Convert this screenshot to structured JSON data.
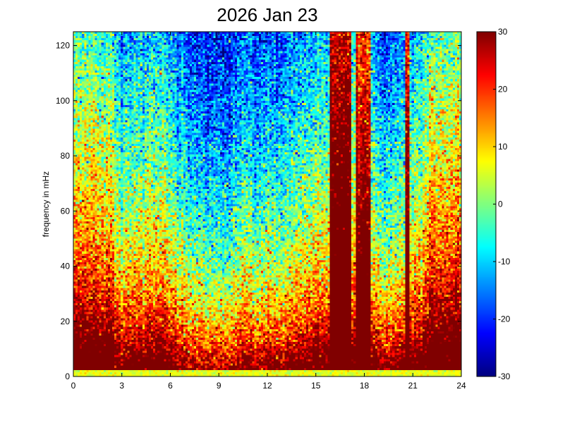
{
  "chart_data": {
    "type": "heatmap",
    "title": "2026 Jan 23",
    "xlabel": "",
    "ylabel": "frequency in mHz",
    "xlim": [
      0,
      24
    ],
    "ylim": [
      0,
      125
    ],
    "x_ticks": [
      0,
      3,
      6,
      9,
      12,
      15,
      18,
      21,
      24
    ],
    "x_tick_labels": [
      "0",
      "3",
      "6",
      "9",
      "12",
      "15",
      "18",
      "21",
      "24"
    ],
    "y_ticks": [
      0,
      20,
      40,
      60,
      80,
      100,
      120
    ],
    "y_tick_labels": [
      "0",
      "20",
      "40",
      "60",
      "80",
      "100",
      "120"
    ],
    "colorbar": {
      "colormap": "jet",
      "clim": [
        -30,
        30
      ],
      "ticks": [
        30,
        20,
        10,
        0,
        -10,
        -20,
        -30
      ],
      "tick_labels": [
        "30",
        "20",
        "10",
        "0",
        "-10",
        "-20",
        "-30"
      ]
    },
    "features": {
      "description_values": "Spectrogram power (dB-like units) vs hour of day and frequency; high power at low frequencies, strong broadband bursts near hours 16-17 and 17.5-18.5, quieter (low power) high frequencies between hours 3-16 and 18.5-20.5.",
      "hot_columns_hours": [
        [
          15.9,
          17.2
        ],
        [
          17.5,
          18.4
        ],
        [
          20.5,
          20.8
        ]
      ],
      "quiet_band_hours": [
        [
          3,
          15.5
        ],
        [
          18.5,
          20.5
        ]
      ]
    }
  }
}
